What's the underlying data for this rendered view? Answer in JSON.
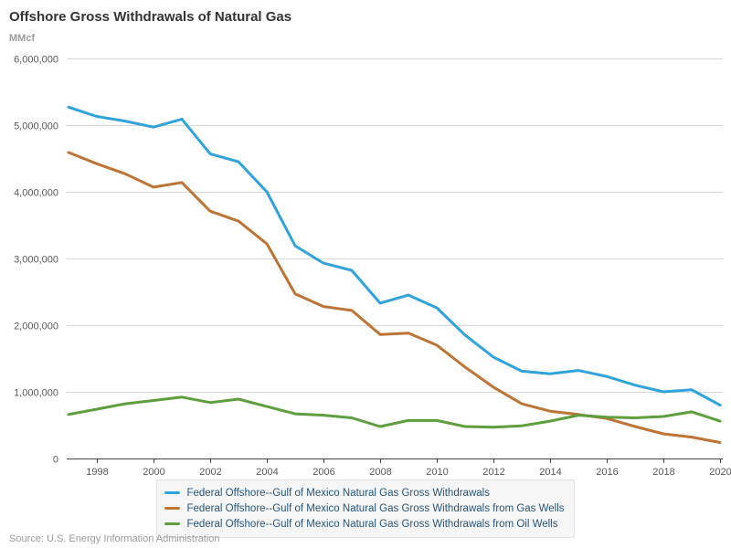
{
  "header": {
    "title": "Offshore Gross Withdrawals of Natural Gas",
    "unit": "MMcf"
  },
  "footer": {
    "source": "Source: U.S. Energy Information Administration"
  },
  "chart_data": {
    "type": "line",
    "title": "Offshore Gross Withdrawals of Natural Gas",
    "xlabel": "",
    "ylabel": "MMcf",
    "grid": true,
    "legend_position": "bottom-center",
    "ylim": [
      0,
      6000000
    ],
    "y_ticks": [
      0,
      1000000,
      2000000,
      3000000,
      4000000,
      5000000,
      6000000
    ],
    "y_tick_labels": [
      "0",
      "1,000,000",
      "2,000,000",
      "3,000,000",
      "4,000,000",
      "5,000,000",
      "6,000,000"
    ],
    "x": [
      1997,
      1998,
      1999,
      2000,
      2001,
      2002,
      2003,
      2004,
      2005,
      2006,
      2007,
      2008,
      2009,
      2010,
      2011,
      2012,
      2013,
      2014,
      2015,
      2016,
      2017,
      2018,
      2019,
      2020
    ],
    "x_tick_labels": [
      "1998",
      "2000",
      "2002",
      "2004",
      "2006",
      "2008",
      "2010",
      "2012",
      "2014",
      "2016",
      "2018",
      "2020"
    ],
    "colors": {
      "gridline": "#d7d7d7",
      "axis": "#404040",
      "axis_text": "#595959"
    },
    "series": [
      {
        "name": "Federal Offshore--Gulf of Mexico Natural Gas Gross Withdrawals",
        "color": "#2ea3dc",
        "values": [
          5270000,
          5130000,
          5060000,
          4970000,
          5090000,
          4570000,
          4450000,
          4000000,
          3190000,
          2930000,
          2820000,
          2330000,
          2450000,
          2260000,
          1850000,
          1520000,
          1310000,
          1270000,
          1320000,
          1230000,
          1100000,
          1000000,
          1030000,
          800000
        ]
      },
      {
        "name": "Federal Offshore--Gulf of Mexico Natural Gas Gross Withdrawals from Gas Wells",
        "color": "#bd7434",
        "values": [
          4590000,
          4420000,
          4270000,
          4070000,
          4140000,
          3710000,
          3560000,
          3220000,
          2470000,
          2280000,
          2220000,
          1860000,
          1880000,
          1700000,
          1370000,
          1070000,
          820000,
          710000,
          660000,
          600000,
          480000,
          370000,
          320000,
          240000
        ]
      },
      {
        "name": "Federal Offshore--Gulf of Mexico Natural Gas Gross Withdrawals from Oil Wells",
        "color": "#5f9e3c",
        "values": [
          660000,
          740000,
          820000,
          870000,
          920000,
          840000,
          890000,
          780000,
          670000,
          650000,
          610000,
          480000,
          570000,
          570000,
          480000,
          470000,
          490000,
          560000,
          650000,
          620000,
          610000,
          630000,
          700000,
          560000
        ]
      }
    ]
  }
}
